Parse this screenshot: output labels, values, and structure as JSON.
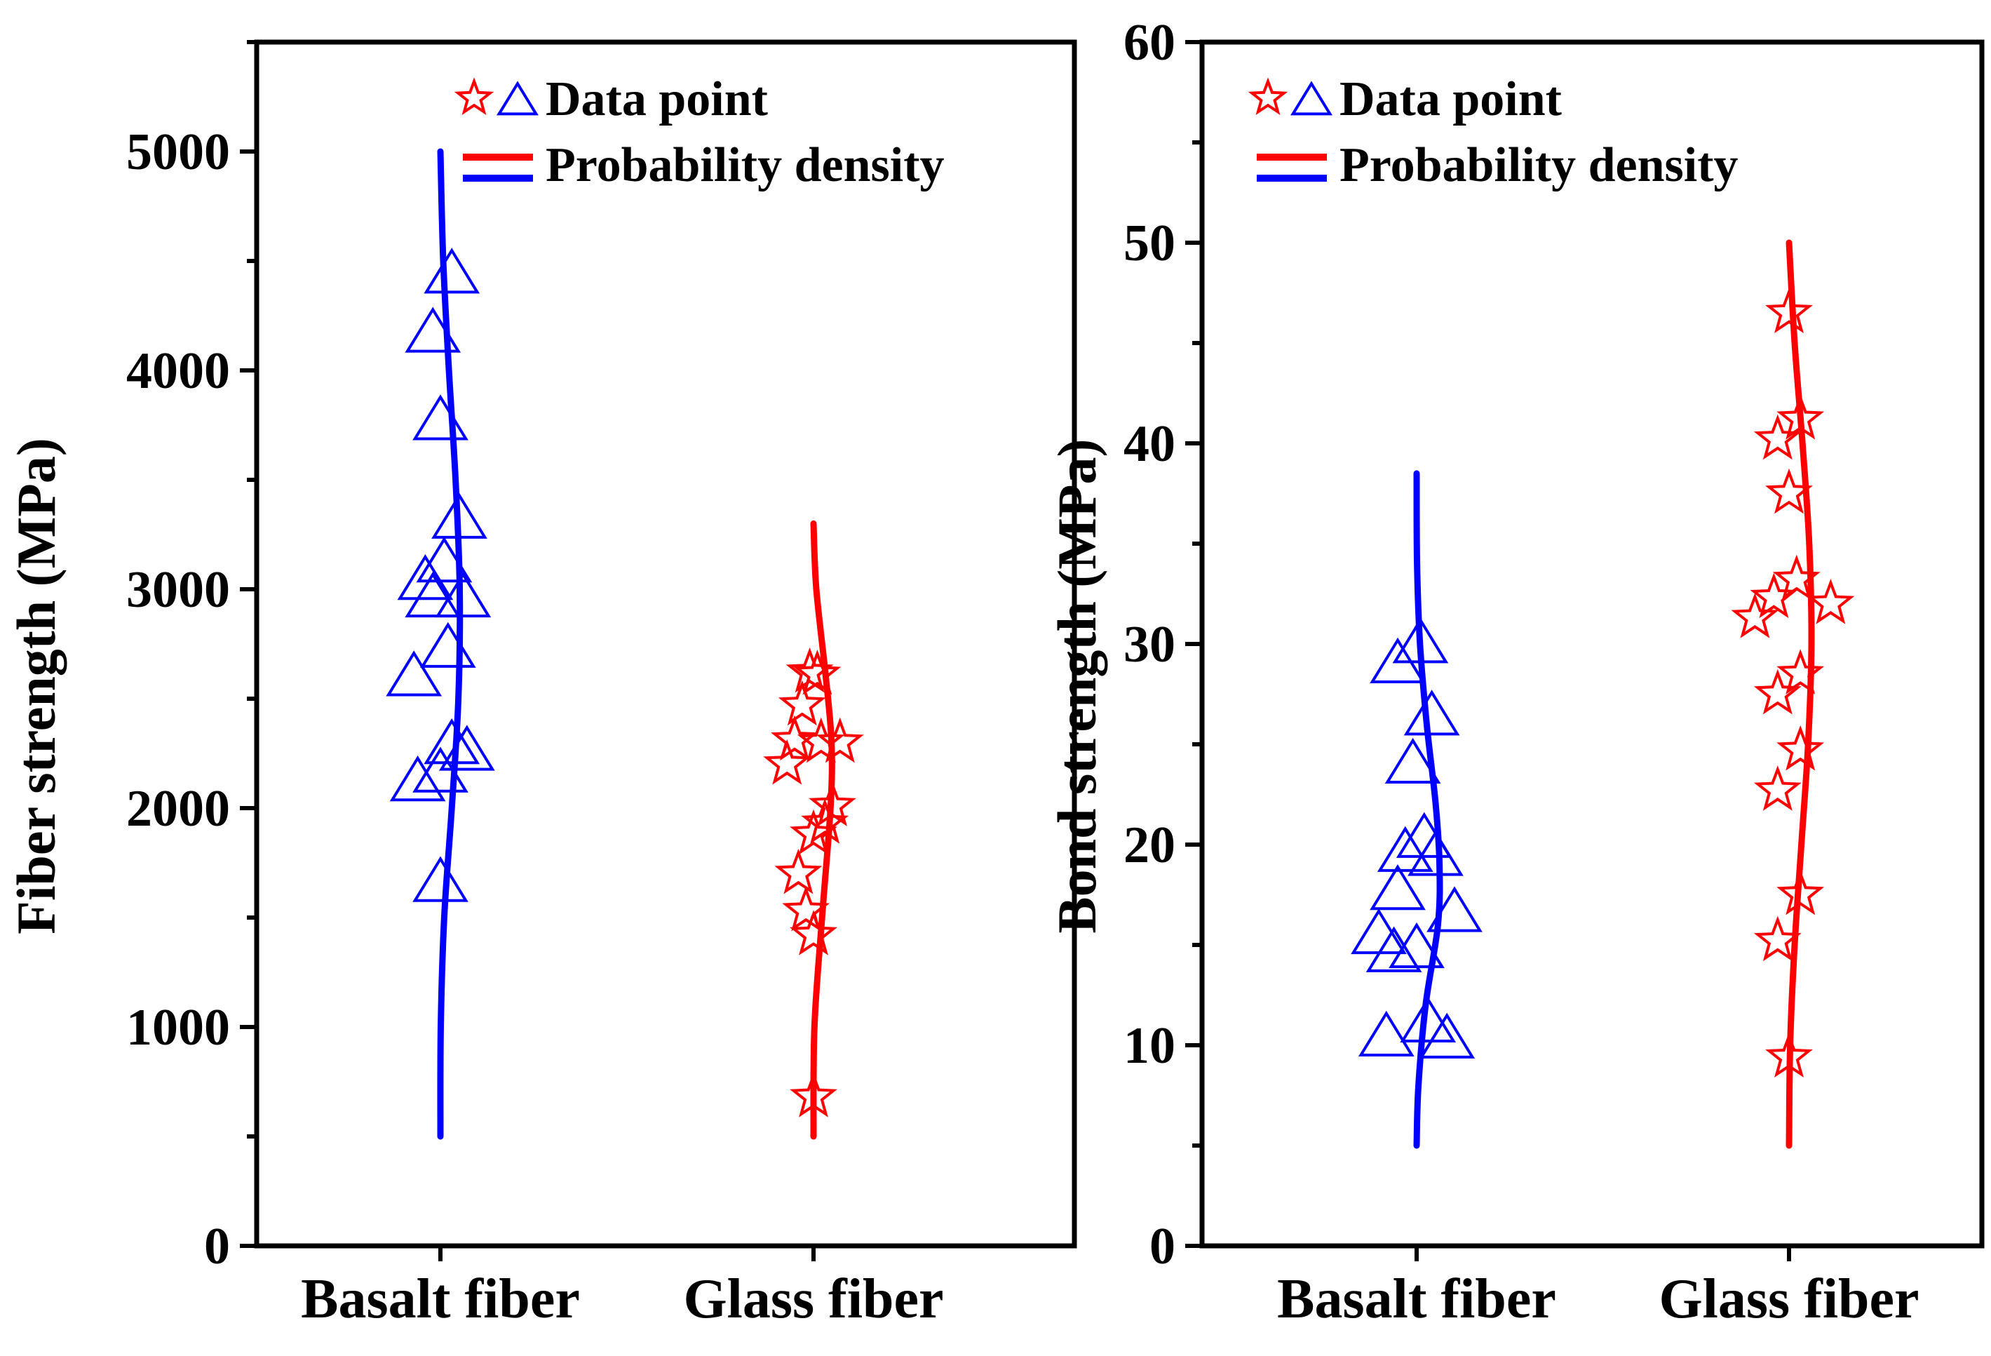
{
  "chart_data": [
    {
      "type": "scatter",
      "title": "",
      "xlabel": "",
      "ylabel": "Fiber strength (MPa)",
      "ylim": [
        0,
        5500
      ],
      "yticks": [
        "0",
        "1000",
        "2000",
        "3000",
        "4000",
        "5000"
      ],
      "categories": [
        "Basalt fiber",
        "Glass fiber"
      ],
      "legend": {
        "position": "top-right",
        "markers_label": "Data point",
        "curves_label": "Probability density"
      },
      "series": [
        {
          "name": "Basalt fiber",
          "color": "#0000ff",
          "marker": "triangle",
          "points": [
            {
              "x": 0.03,
              "y": 4430
            },
            {
              "x": -0.02,
              "y": 4160
            },
            {
              "x": 0.0,
              "y": 3760
            },
            {
              "x": 0.05,
              "y": 3310
            },
            {
              "x": 0.01,
              "y": 3110
            },
            {
              "x": -0.04,
              "y": 3030
            },
            {
              "x": -0.02,
              "y": 2950
            },
            {
              "x": 0.06,
              "y": 2950
            },
            {
              "x": 0.02,
              "y": 2720
            },
            {
              "x": -0.07,
              "y": 2590
            },
            {
              "x": 0.03,
              "y": 2280
            },
            {
              "x": 0.07,
              "y": 2250
            },
            {
              "x": 0.0,
              "y": 2150
            },
            {
              "x": -0.06,
              "y": 2110
            },
            {
              "x": 0.0,
              "y": 1650
            }
          ],
          "density_curve": [
            {
              "y": 500,
              "d": 0.0
            },
            {
              "y": 1000,
              "d": 0.002
            },
            {
              "y": 1500,
              "d": 0.02
            },
            {
              "y": 2000,
              "d": 0.06
            },
            {
              "y": 2500,
              "d": 0.095
            },
            {
              "y": 3000,
              "d": 0.102
            },
            {
              "y": 3500,
              "d": 0.08
            },
            {
              "y": 4000,
              "d": 0.045
            },
            {
              "y": 4500,
              "d": 0.015
            },
            {
              "y": 5000,
              "d": 0.0
            }
          ]
        },
        {
          "name": "Glass fiber",
          "color": "#ff0000",
          "marker": "star",
          "points": [
            {
              "x": -0.01,
              "y": 2620
            },
            {
              "x": 0.01,
              "y": 2610
            },
            {
              "x": -0.03,
              "y": 2470
            },
            {
              "x": -0.05,
              "y": 2310
            },
            {
              "x": 0.02,
              "y": 2300
            },
            {
              "x": 0.07,
              "y": 2300
            },
            {
              "x": -0.07,
              "y": 2200
            },
            {
              "x": 0.05,
              "y": 2010
            },
            {
              "x": 0.03,
              "y": 1930
            },
            {
              "x": 0.0,
              "y": 1880
            },
            {
              "x": -0.04,
              "y": 1700
            },
            {
              "x": -0.02,
              "y": 1530
            },
            {
              "x": 0.0,
              "y": 1420
            },
            {
              "x": 0.0,
              "y": 680
            }
          ],
          "density_curve": [
            {
              "y": 500,
              "d": 0.0
            },
            {
              "y": 1000,
              "d": 0.005
            },
            {
              "y": 1500,
              "d": 0.045
            },
            {
              "y": 2000,
              "d": 0.09
            },
            {
              "y": 2300,
              "d": 0.095
            },
            {
              "y": 2600,
              "d": 0.065
            },
            {
              "y": 3000,
              "d": 0.015
            },
            {
              "y": 3300,
              "d": 0.0
            }
          ]
        }
      ]
    },
    {
      "type": "scatter",
      "title": "",
      "xlabel": "",
      "ylabel": "Bond strength (MPa)",
      "ylim": [
        0,
        60
      ],
      "yticks": [
        "0",
        "10",
        "20",
        "30",
        "40",
        "50",
        "60"
      ],
      "categories": [
        "Basalt fiber",
        "Glass fiber"
      ],
      "legend": {
        "position": "top-left",
        "markers_label": "Data point",
        "curves_label": "Probability density"
      },
      "series": [
        {
          "name": "Basalt fiber",
          "color": "#0000ff",
          "marker": "triangle",
          "points": [
            {
              "x": 0.01,
              "y": 29.9
            },
            {
              "x": -0.05,
              "y": 28.9
            },
            {
              "x": 0.04,
              "y": 26.3
            },
            {
              "x": -0.01,
              "y": 23.9
            },
            {
              "x": 0.02,
              "y": 20.2
            },
            {
              "x": -0.03,
              "y": 19.5
            },
            {
              "x": 0.05,
              "y": 19.3
            },
            {
              "x": -0.05,
              "y": 17.6
            },
            {
              "x": 0.1,
              "y": 16.5
            },
            {
              "x": -0.1,
              "y": 15.4
            },
            {
              "x": -0.06,
              "y": 14.5
            },
            {
              "x": 0.0,
              "y": 14.7
            },
            {
              "x": 0.03,
              "y": 11.0
            },
            {
              "x": -0.08,
              "y": 10.3
            },
            {
              "x": 0.08,
              "y": 10.2
            }
          ],
          "density_curve": [
            {
              "y": 5,
              "d": 0.0
            },
            {
              "y": 8,
              "d": 0.008
            },
            {
              "y": 12,
              "d": 0.04
            },
            {
              "y": 16,
              "d": 0.095
            },
            {
              "y": 19,
              "d": 0.102
            },
            {
              "y": 22,
              "d": 0.085
            },
            {
              "y": 26,
              "d": 0.045
            },
            {
              "y": 30,
              "d": 0.015
            },
            {
              "y": 34,
              "d": 0.002
            },
            {
              "y": 38.5,
              "d": 0.0
            }
          ]
        },
        {
          "name": "Glass fiber",
          "color": "#ff0000",
          "marker": "star",
          "points": [
            {
              "x": 0.0,
              "y": 46.5
            },
            {
              "x": 0.03,
              "y": 41.2
            },
            {
              "x": -0.03,
              "y": 40.2
            },
            {
              "x": 0.0,
              "y": 37.5
            },
            {
              "x": 0.02,
              "y": 33.2
            },
            {
              "x": -0.04,
              "y": 32.3
            },
            {
              "x": 0.11,
              "y": 32.0
            },
            {
              "x": -0.09,
              "y": 31.3
            },
            {
              "x": 0.03,
              "y": 28.5
            },
            {
              "x": -0.03,
              "y": 27.5
            },
            {
              "x": 0.03,
              "y": 24.7
            },
            {
              "x": -0.03,
              "y": 22.7
            },
            {
              "x": 0.03,
              "y": 17.5
            },
            {
              "x": -0.03,
              "y": 15.2
            },
            {
              "x": 0.0,
              "y": 9.4
            }
          ],
          "density_curve": [
            {
              "y": 5,
              "d": 0.0
            },
            {
              "y": 10,
              "d": 0.005
            },
            {
              "y": 15,
              "d": 0.025
            },
            {
              "y": 20,
              "d": 0.055
            },
            {
              "y": 25,
              "d": 0.085
            },
            {
              "y": 30,
              "d": 0.1
            },
            {
              "y": 35,
              "d": 0.09
            },
            {
              "y": 40,
              "d": 0.06
            },
            {
              "y": 45,
              "d": 0.025
            },
            {
              "y": 50,
              "d": 0.0
            }
          ]
        }
      ]
    }
  ]
}
